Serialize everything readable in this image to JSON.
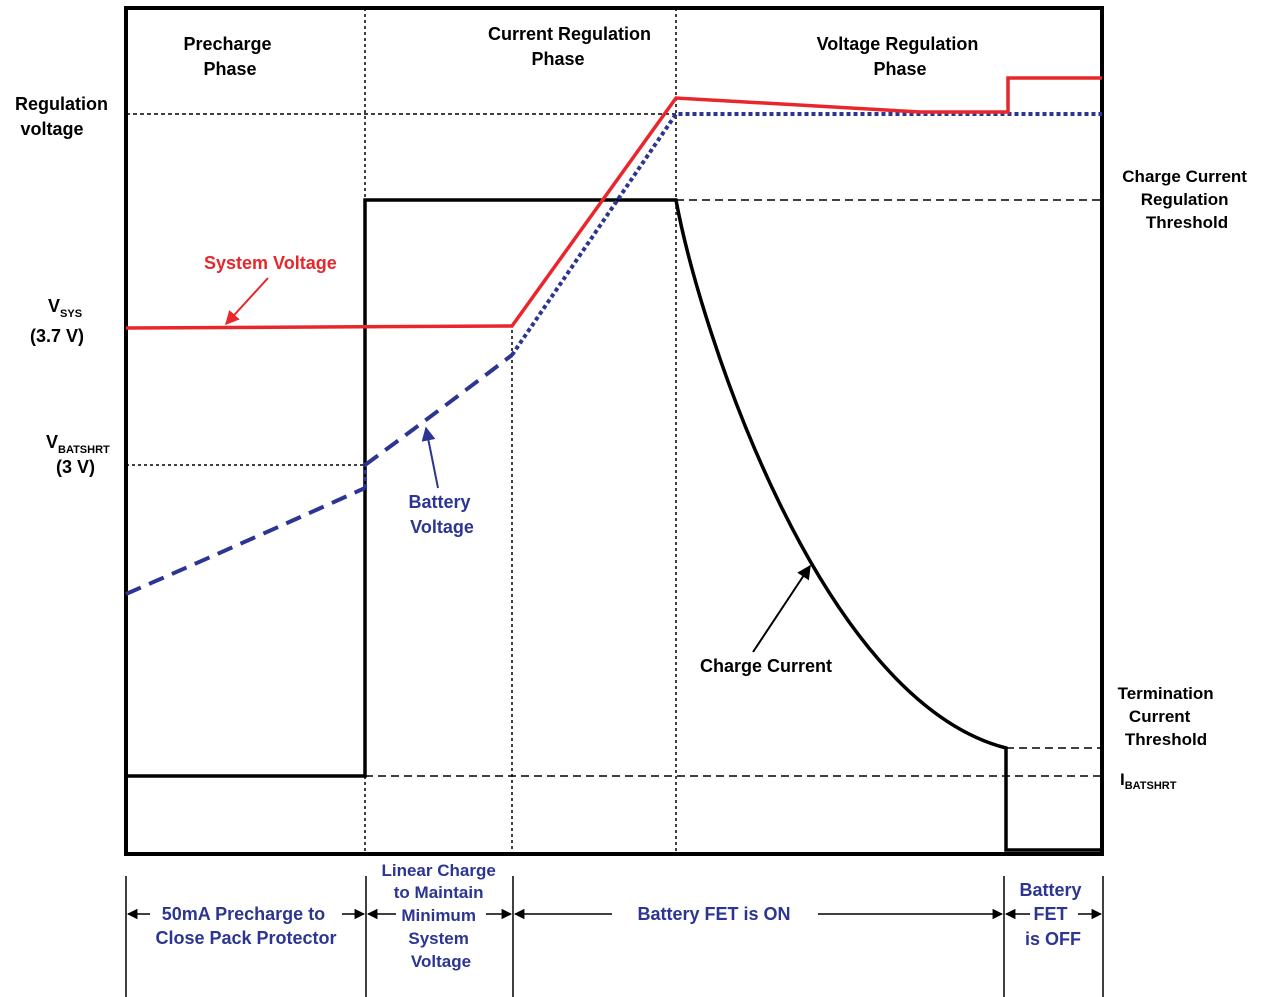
{
  "phases": {
    "precharge": [
      "Precharge",
      "Phase"
    ],
    "current_regulation": [
      "Current Regulation",
      "Phase"
    ],
    "voltage_regulation": [
      "Voltage Regulation",
      "Phase"
    ]
  },
  "left_labels": {
    "regulation_voltage": [
      "Regulation",
      "voltage"
    ],
    "vsys_main": "V",
    "vsys_sub": "SYS",
    "vsys_value": "(3.7 V)",
    "vbatshrt_main": "V",
    "vbatshrt_sub": "BATSHRT",
    "vbatshrt_value": "(3 V)"
  },
  "right_labels": {
    "charge_current_threshold": [
      "Charge Current",
      "Regulation",
      "Threshold"
    ],
    "termination_threshold": [
      "Termination",
      "Current",
      "Threshold"
    ],
    "ibatshrt_main": "I",
    "ibatshrt_sub": "BATSHRT"
  },
  "curve_labels": {
    "system_voltage": "System Voltage",
    "battery_voltage": [
      "Battery",
      "Voltage"
    ],
    "charge_current": "Charge Current"
  },
  "bottom_labels": {
    "precharge_note": [
      "50mA Precharge to",
      "Close Pack Protector"
    ],
    "linear_charge": [
      "Linear Charge",
      "to Maintain",
      "Minimum",
      "System",
      "Voltage"
    ],
    "fet_on": "Battery FET is ON",
    "fet_off": [
      "Battery",
      "FET",
      "is OFF"
    ]
  },
  "colors": {
    "system_voltage": "#e8262c",
    "battery_voltage": "#2c3592",
    "charge_current": "#000000"
  }
}
